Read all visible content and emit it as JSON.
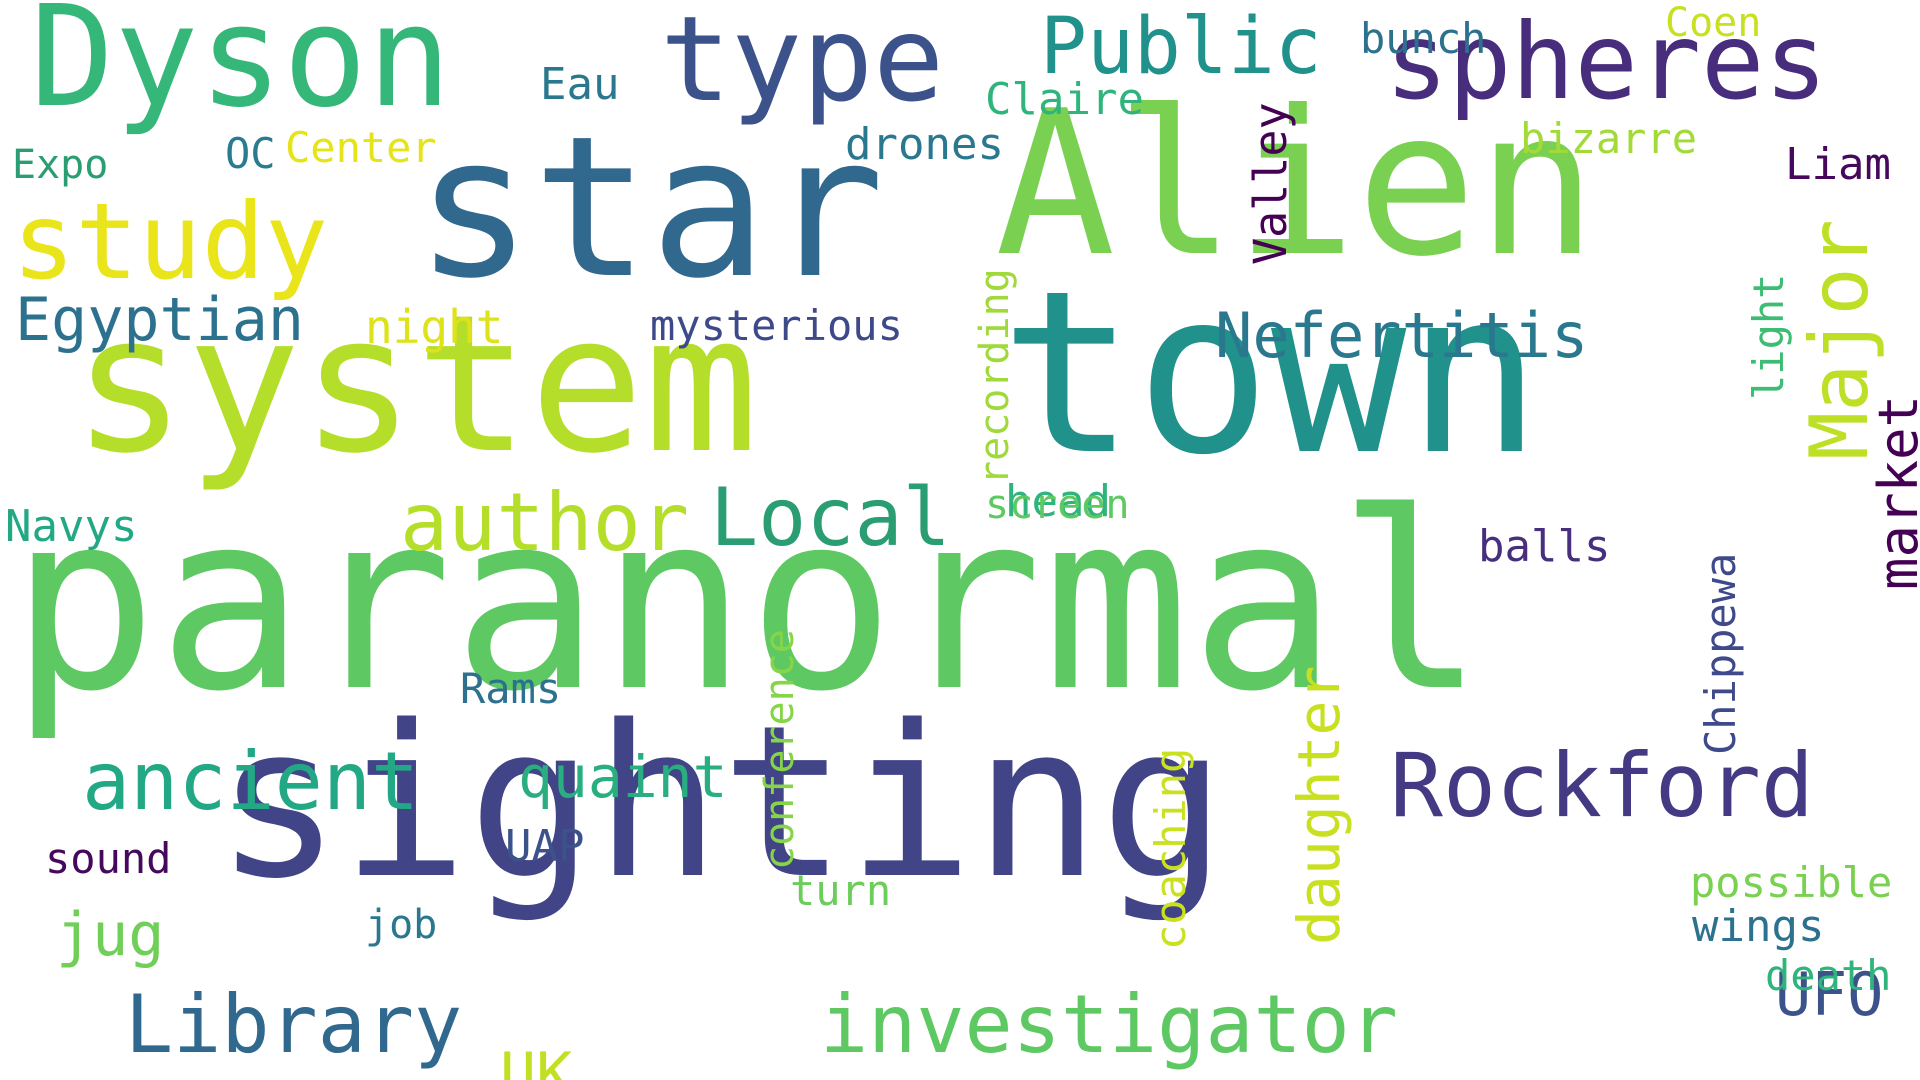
{
  "word_cloud": {
    "words": [
      {
        "text": "paranormal",
        "color": "#5ec962"
      },
      {
        "text": "sighting",
        "color": "#414487"
      },
      {
        "text": "town",
        "color": "#21918c"
      },
      {
        "text": "system",
        "color": "#b5de2b"
      },
      {
        "text": "star",
        "color": "#31688e"
      },
      {
        "text": "Alien",
        "color": "#7ad151"
      },
      {
        "text": "Dyson",
        "color": "#35b779"
      },
      {
        "text": "type",
        "color": "#3b528b"
      },
      {
        "text": "spheres",
        "color": "#472d7b"
      },
      {
        "text": "study",
        "color": "#eae51a"
      },
      {
        "text": "Public",
        "color": "#21918c"
      },
      {
        "text": "Rockford",
        "color": "#443983"
      },
      {
        "text": "author",
        "color": "#b5de2b"
      },
      {
        "text": "Local",
        "color": "#2a9d72"
      },
      {
        "text": "ancient",
        "color": "#22a884"
      },
      {
        "text": "Library",
        "color": "#31688e"
      },
      {
        "text": "investigator",
        "color": "#5ec962"
      },
      {
        "text": "Nefertitis",
        "color": "#2a788e"
      },
      {
        "text": "Egyptian",
        "color": "#2c728e"
      },
      {
        "text": "quaint",
        "color": "#29af7f"
      },
      {
        "text": "Major",
        "color": "#bddf26"
      },
      {
        "text": "UFO",
        "color": "#3b528b"
      },
      {
        "text": "Chippewa",
        "color": "#3e4a89"
      },
      {
        "text": "death",
        "color": "#2fb47c"
      },
      {
        "text": "jug",
        "color": "#70cf57"
      },
      {
        "text": "UK",
        "color": "#c2df23"
      },
      {
        "text": "bunch",
        "color": "#2c728e"
      },
      {
        "text": "Coen",
        "color": "#c8e020"
      },
      {
        "text": "Eau",
        "color": "#2a788e"
      },
      {
        "text": "Claire",
        "color": "#2fb47c"
      },
      {
        "text": "Expo",
        "color": "#2a9d72"
      },
      {
        "text": "OC",
        "color": "#287c8e"
      },
      {
        "text": "Center",
        "color": "#e5e419"
      },
      {
        "text": "drones",
        "color": "#2a788e"
      },
      {
        "text": "bizarre",
        "color": "#a2da37"
      },
      {
        "text": "Liam",
        "color": "#46085c"
      },
      {
        "text": "Valley",
        "color": "#440154"
      },
      {
        "text": "head",
        "color": "#2fb47c"
      },
      {
        "text": "night",
        "color": "#dde318"
      },
      {
        "text": "mysterious",
        "color": "#3e4989"
      },
      {
        "text": "recording",
        "color": "#9fda3a"
      },
      {
        "text": "light",
        "color": "#3dbc74"
      },
      {
        "text": "screen",
        "color": "#5ec962"
      },
      {
        "text": "conference",
        "color": "#86d549"
      },
      {
        "text": "balls",
        "color": "#472f7d"
      },
      {
        "text": "Navys",
        "color": "#22a884"
      },
      {
        "text": "market",
        "color": "#440154"
      },
      {
        "text": "Rams",
        "color": "#2c728e"
      },
      {
        "text": "turn",
        "color": "#6ccd5a"
      },
      {
        "text": "coaching",
        "color": "#cae11f"
      },
      {
        "text": "daughter",
        "color": "#c8e020"
      },
      {
        "text": "possible",
        "color": "#7ad151"
      },
      {
        "text": "sound",
        "color": "#46085c"
      },
      {
        "text": "UAP",
        "color": "#3b528b"
      },
      {
        "text": "job",
        "color": "#2a788e"
      },
      {
        "text": "wings",
        "color": "#2c728e"
      },
      {
        "text": "death",
        "color": "#2fb47c"
      },
      {
        "text": "UFO",
        "color": "#3b528b"
      },
      {
        "text": "Major",
        "color": "#bddf26"
      },
      {
        "text": "market",
        "color": "#440154"
      }
    ]
  }
}
